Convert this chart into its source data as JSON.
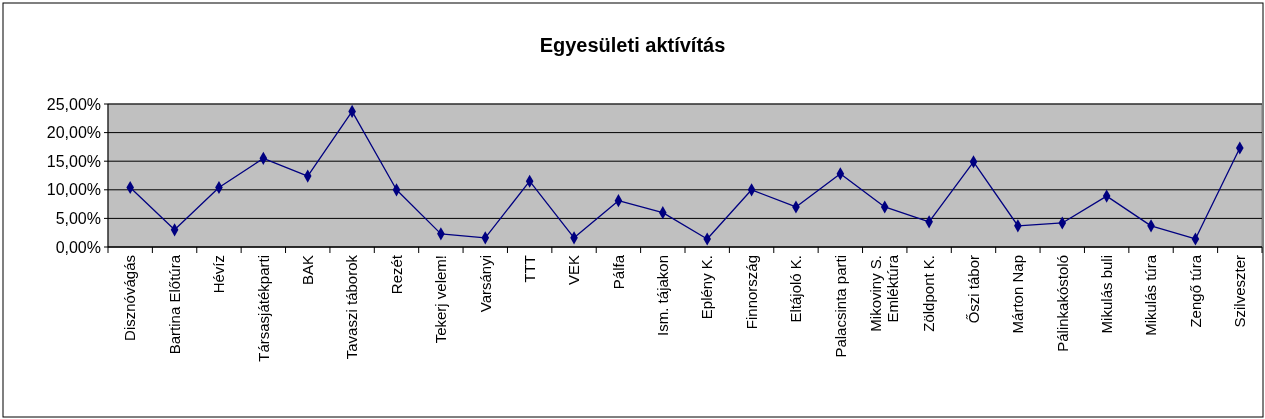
{
  "chart_data": {
    "type": "line",
    "title": "Egyesületi aktívítás",
    "categories": [
      "Disznóvágás",
      "Bartina Előtúra",
      "Hévíz",
      "Társasjátékparti",
      "BAK",
      "Tavaszi táborok",
      "Rezét",
      "Tekerj velem!",
      "Varsányi",
      "TTT",
      "VEK",
      "Pálfa",
      "Ism. tájakon",
      "Eplény K.",
      "Finnország",
      "Eltájoló K.",
      "Palacsinta parti",
      "Mikoviny S. Emléktúra",
      "Zöldpont K.",
      "Őszi tábor",
      "Márton Nap",
      "Pálinkakóstoló",
      "Mikulás buli",
      "Mikulás túra",
      "Zengő túra",
      "Szilveszter"
    ],
    "series": [
      {
        "color": "#000080",
        "values": [
          10.4,
          3.0,
          10.4,
          15.5,
          12.4,
          23.7,
          10.0,
          2.3,
          1.6,
          11.5,
          1.6,
          8.1,
          6.0,
          1.4,
          10.0,
          7.0,
          12.8,
          7.0,
          4.4,
          14.9,
          3.7,
          4.2,
          8.9,
          3.7,
          1.4,
          17.3
        ]
      }
    ],
    "ylim": [
      0,
      25
    ],
    "yticks": [
      {
        "value": 0,
        "label": "0,00%"
      },
      {
        "value": 5,
        "label": "5,00%"
      },
      {
        "value": 10,
        "label": "10,00%"
      },
      {
        "value": 15,
        "label": "15,00%"
      },
      {
        "value": 20,
        "label": "20,00%"
      },
      {
        "value": 25,
        "label": "25,00%"
      }
    ],
    "grid": "y",
    "marker": "diamond",
    "line_style": "solid"
  }
}
